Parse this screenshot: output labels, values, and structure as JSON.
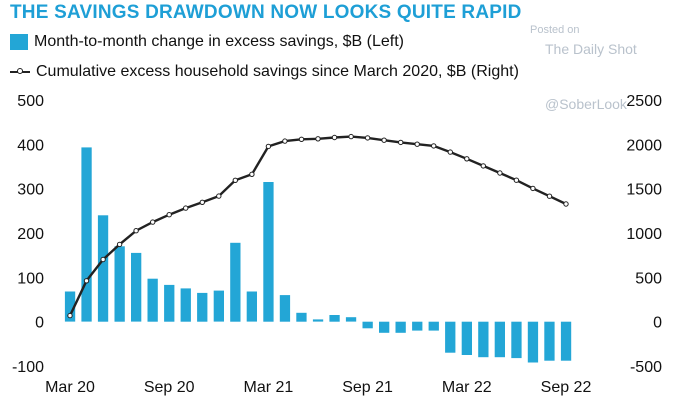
{
  "header": {
    "title": "THE SAVINGS DRAWDOWN NOW LOOKS QUITE RAPID"
  },
  "watermark": {
    "line1": "Posted on",
    "line2": "The Daily Shot",
    "line3": "@SoberLook"
  },
  "colors": {
    "title": "#1e9fd6",
    "bars": "#23a6d6",
    "line": "#222222"
  },
  "chart_data": {
    "type": "bar",
    "legend": "top-left",
    "grid": false,
    "x": [
      "Mar 20",
      "Apr 20",
      "May 20",
      "Jun 20",
      "Jul 20",
      "Aug 20",
      "Sep 20",
      "Oct 20",
      "Nov 20",
      "Dec 20",
      "Jan 21",
      "Feb 21",
      "Mar 21",
      "Apr 21",
      "May 21",
      "Jun 21",
      "Jul 21",
      "Aug 21",
      "Sep 21",
      "Oct 21",
      "Nov 21",
      "Dec 21",
      "Jan 22",
      "Feb 22",
      "Mar 22",
      "Apr 22",
      "May 22",
      "Jun 22",
      "Jul 22",
      "Aug 22",
      "Sep 22"
    ],
    "x_tick_labels": [
      "Mar 20",
      "Sep 20",
      "Mar 21",
      "Sep 21",
      "Mar 22",
      "Sep 22"
    ],
    "x_tick_index": [
      0,
      6,
      12,
      18,
      24,
      30
    ],
    "y_left": {
      "ylim": [
        -100,
        500
      ],
      "ticks": [
        "-100",
        "0",
        "100",
        "200",
        "300",
        "400",
        "500"
      ]
    },
    "y_right": {
      "ylim": [
        -500,
        2500
      ],
      "ticks": [
        "-500",
        "0",
        "500",
        "1000",
        "1500",
        "2000",
        "2500"
      ]
    },
    "series": [
      {
        "name": "Month-to-month change in excess savings, $B (Left)",
        "type": "bar",
        "axis": "left",
        "values": [
          68,
          393,
          240,
          170,
          155,
          97,
          83,
          75,
          65,
          70,
          178,
          68,
          315,
          60,
          20,
          5,
          15,
          10,
          -15,
          -25,
          -25,
          -20,
          -20,
          -70,
          -75,
          -80,
          -80,
          -82,
          -92,
          -88,
          -88
        ]
      },
      {
        "name": "Cumulative excess household savings since March 2020, $B (Right)",
        "type": "line",
        "axis": "right",
        "values": [
          68,
          461,
          701,
          871,
          1026,
          1123,
          1206,
          1281,
          1346,
          1416,
          1594,
          1662,
          1977,
          2037,
          2057,
          2062,
          2077,
          2087,
          2072,
          2047,
          2022,
          2002,
          1982,
          1912,
          1837,
          1757,
          1677,
          1595,
          1503,
          1415,
          1327
        ]
      }
    ]
  }
}
